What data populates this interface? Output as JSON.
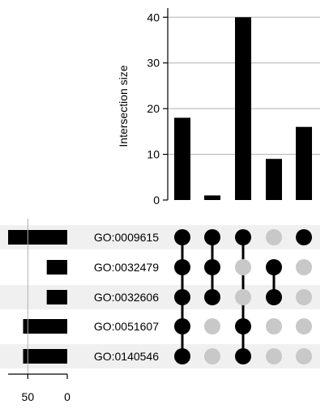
{
  "chart_data": {
    "type": "upset",
    "ylabel": "Intersection size",
    "intersection_ylim": [
      0,
      42
    ],
    "intersection_yticks": [
      0,
      10,
      20,
      30,
      40
    ],
    "set_size_xlim": [
      75,
      0
    ],
    "set_size_xticks": [
      50,
      0
    ],
    "sets": [
      {
        "name": "GO:0009615",
        "size": 75
      },
      {
        "name": "GO:0032479",
        "size": 26
      },
      {
        "name": "GO:0032606",
        "size": 26
      },
      {
        "name": "GO:0051607",
        "size": 56
      },
      {
        "name": "GO:0140546",
        "size": 56
      }
    ],
    "intersections": [
      {
        "size": 18,
        "members": [
          0,
          1,
          2,
          3,
          4
        ]
      },
      {
        "size": 1,
        "members": [
          0,
          1,
          2
        ]
      },
      {
        "size": 40,
        "members": [
          0,
          3,
          4
        ]
      },
      {
        "size": 9,
        "members": [
          1,
          2
        ]
      },
      {
        "size": 16,
        "members": [
          0
        ]
      }
    ],
    "colors": {
      "bar": "#000000",
      "dot_on": "#000000",
      "dot_off": "#c8c8c8",
      "grid": "#b0b0b0",
      "stripe": "#f0f0f0"
    }
  }
}
